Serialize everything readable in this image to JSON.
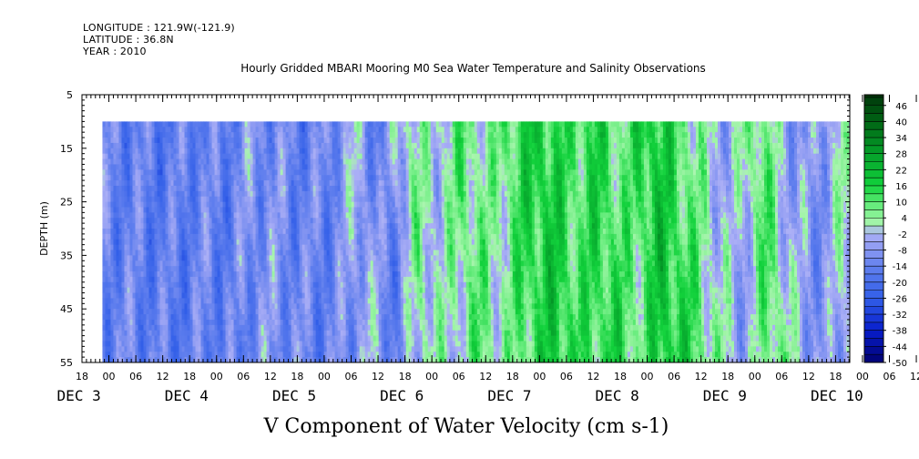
{
  "header": {
    "longitude": "LONGITUDE : 121.9W(-121.9)",
    "latitude": "LATITUDE : 36.8N",
    "year": "YEAR : 2010"
  },
  "chart_data": {
    "type": "heatmap",
    "title": "Hourly Gridded MBARI Mooring M0 Sea Water Temperature and Salinity Observations",
    "xlabel": "V Component of Water Velocity (cm s-1)",
    "ylabel": "DEPTH (m)",
    "ylim": [
      5,
      55
    ],
    "y_reversed": true,
    "y_ticks": [
      5,
      15,
      25,
      35,
      45,
      55
    ],
    "x_start": "DEC 2 18:00",
    "x_end": "DEC 10 12:00",
    "data_depth_range": [
      10,
      55
    ],
    "x_hour_ticks": [
      "18",
      "00",
      "06",
      "12",
      "18",
      "00",
      "06",
      "12",
      "18",
      "00",
      "06",
      "12",
      "18",
      "00",
      "06",
      "12",
      "18",
      "00",
      "06",
      "12",
      "18",
      "00",
      "06",
      "12",
      "18",
      "00",
      "06",
      "12",
      "18",
      "00",
      "06",
      "12"
    ],
    "x_day_labels": [
      "DEC  3",
      "DEC  4",
      "DEC  5",
      "DEC  6",
      "DEC  7",
      "DEC  8",
      "DEC  9",
      "DEC 10"
    ],
    "colorbar": {
      "min": -50,
      "max": 50,
      "step": 3,
      "labels": [
        "46",
        "40",
        "34",
        "28",
        "22",
        "16",
        "10",
        "4",
        "-2",
        "-8",
        "-14",
        "-20",
        "-26",
        "-32",
        "-38",
        "-44",
        "-50"
      ]
    },
    "colors": {
      "strong_positive": "#004400",
      "positive": "#12d23c",
      "weak_positive": "#9af59a",
      "weak_negative": "#a8a8f5",
      "negative": "#5a82eb",
      "strong_negative": "#000070"
    },
    "column_mean_velocity": [
      {
        "day": 3.0,
        "v": -13
      },
      {
        "day": 3.25,
        "v": -15
      },
      {
        "day": 3.5,
        "v": -16
      },
      {
        "day": 3.75,
        "v": -13
      },
      {
        "day": 4.0,
        "v": -15
      },
      {
        "day": 4.25,
        "v": -9
      },
      {
        "day": 4.5,
        "v": -11
      },
      {
        "day": 4.75,
        "v": -14
      },
      {
        "day": 5.0,
        "v": -12
      },
      {
        "day": 5.25,
        "v": -3
      },
      {
        "day": 5.5,
        "v": -15
      },
      {
        "day": 5.75,
        "v": 4
      },
      {
        "day": 6.0,
        "v": -1
      },
      {
        "day": 6.25,
        "v": 9
      },
      {
        "day": 6.5,
        "v": 2
      },
      {
        "day": 6.75,
        "v": 13
      },
      {
        "day": 7.0,
        "v": 18
      },
      {
        "day": 7.25,
        "v": 10
      },
      {
        "day": 7.5,
        "v": 15
      },
      {
        "day": 7.75,
        "v": 7
      },
      {
        "day": 8.0,
        "v": 19
      },
      {
        "day": 8.25,
        "v": 12
      },
      {
        "day": 8.5,
        "v": 1
      },
      {
        "day": 8.75,
        "v": -6
      },
      {
        "day": 9.0,
        "v": 11
      },
      {
        "day": 9.25,
        "v": -5
      },
      {
        "day": 9.5,
        "v": -10
      },
      {
        "day": 9.75,
        "v": 2
      },
      {
        "day": 10.0,
        "v": -11
      },
      {
        "day": 10.25,
        "v": -14
      },
      {
        "day": 10.5,
        "v": -10
      }
    ]
  }
}
